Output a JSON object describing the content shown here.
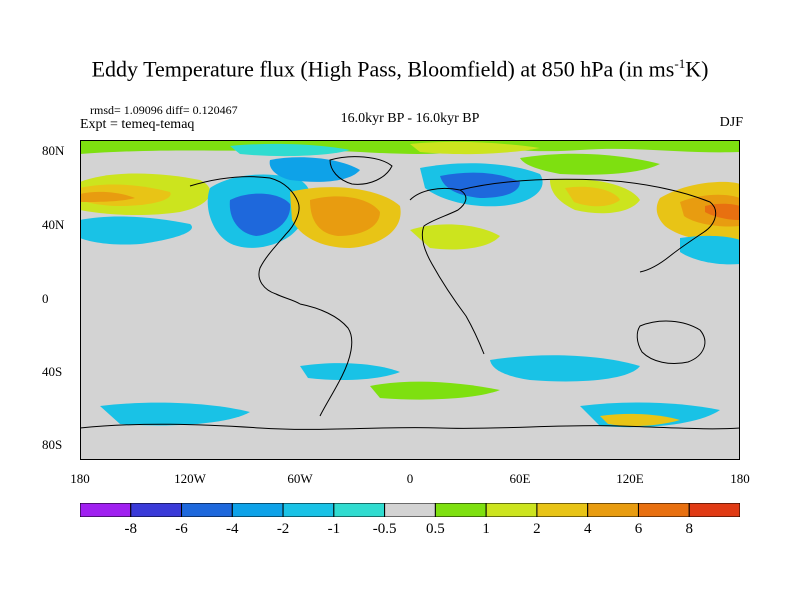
{
  "title": {
    "main": "Eddy Temperature flux (High Pass, Bloomfield) at 850 hPa (in ms",
    "sup": "-1",
    "unit_end": "K)"
  },
  "stats": "rmsd= 1.09096 diff= 0.120467",
  "experiment": "Expt = temeq-temaq",
  "comparison": "16.0kyr BP - 16.0kyr BP",
  "season": "DJF",
  "lat_labels": [
    "80N",
    "40N",
    "0",
    "40S",
    "80S"
  ],
  "lon_labels": [
    "180",
    "120W",
    "60W",
    "0",
    "60E",
    "120E",
    "180"
  ],
  "colorbar": {
    "labels": [
      "-8",
      "-6",
      "-4",
      "-2",
      "-1",
      "-0.5",
      "0.5",
      "1",
      "2",
      "4",
      "6",
      "8"
    ],
    "colors": [
      "#a020f0",
      "#3a3ad8",
      "#1e68dc",
      "#0ea2e8",
      "#19c2e6",
      "#30dcd0",
      "#d3d3d3",
      "#7ee010",
      "#cce41e",
      "#e8c416",
      "#e89c10",
      "#e87010",
      "#e03a14"
    ]
  }
}
